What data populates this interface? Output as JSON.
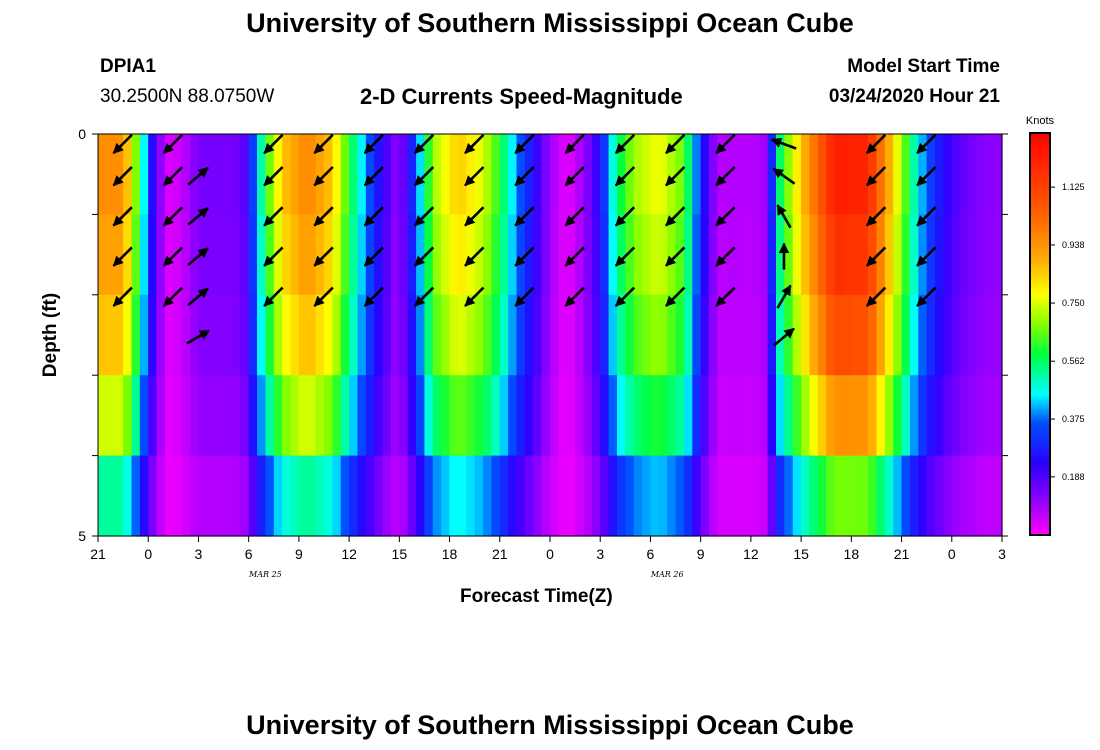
{
  "page": {
    "title_top": "University of Southern Mississippi Ocean Cube",
    "title_bottom": "University of Southern Mississippi Ocean Cube",
    "station_id": "DPIA1",
    "station_coords": "30.2500N 88.0750W",
    "plot_title": "2-D Currents Speed-Magnitude",
    "model_label": "Model Start Time",
    "model_time": "03/24/2020 Hour 21"
  },
  "chart_data": {
    "type": "heatmap",
    "title": "2-D Currents Speed-Magnitude",
    "xlabel": "Forecast Time(Z)",
    "ylabel": "Depth (ft)",
    "x_ticks": [
      "21",
      "0",
      "3",
      "6",
      "9",
      "12",
      "15",
      "18",
      "21",
      "0",
      "3",
      "6",
      "9",
      "12",
      "15",
      "18",
      "21",
      "0",
      "3"
    ],
    "date_labels": [
      {
        "text": "MAR 25",
        "hour_index": 10
      },
      {
        "text": "MAR 26",
        "hour_index": 34
      }
    ],
    "y_ticks": [
      "0",
      "5"
    ],
    "ylim": [
      0,
      5
    ],
    "hours": 54,
    "layers": 5,
    "colorbar": {
      "unit": "Knots",
      "min": 0,
      "max": 1.3,
      "labels": [
        "1.125",
        "0.938",
        "0.750",
        "0.562",
        "0.375",
        "0.188"
      ]
    },
    "speed_profile": [
      {
        "h": 0,
        "v": 0.95
      },
      {
        "h": 1.5,
        "v": 0.95
      },
      {
        "h": 2.2,
        "v": 0.7
      },
      {
        "h": 3,
        "v": 0.35
      },
      {
        "h": 3.5,
        "v": 0.15
      },
      {
        "h": 4.3,
        "v": 0.03
      },
      {
        "h": 5,
        "v": 0.06
      },
      {
        "h": 6,
        "v": 0.14
      },
      {
        "h": 8,
        "v": 0.14
      },
      {
        "h": 8.7,
        "v": 0.16
      },
      {
        "h": 9.3,
        "v": 0.35
      },
      {
        "h": 10,
        "v": 0.6
      },
      {
        "h": 11,
        "v": 0.85
      },
      {
        "h": 12.5,
        "v": 0.97
      },
      {
        "h": 14,
        "v": 0.85
      },
      {
        "h": 15,
        "v": 0.6
      },
      {
        "h": 16,
        "v": 0.4
      },
      {
        "h": 17,
        "v": 0.22
      },
      {
        "h": 18,
        "v": 0.1
      },
      {
        "h": 19,
        "v": 0.35
      },
      {
        "h": 20,
        "v": 0.7
      },
      {
        "h": 21.5,
        "v": 0.85
      },
      {
        "h": 23,
        "v": 0.75
      },
      {
        "h": 24,
        "v": 0.6
      },
      {
        "h": 25,
        "v": 0.4
      },
      {
        "h": 26,
        "v": 0.25
      },
      {
        "h": 27,
        "v": 0.1
      },
      {
        "h": 28,
        "v": 0.02
      },
      {
        "h": 29,
        "v": 0.1
      },
      {
        "h": 30,
        "v": 0.25
      },
      {
        "h": 31,
        "v": 0.55
      },
      {
        "h": 32,
        "v": 0.7
      },
      {
        "h": 33.5,
        "v": 0.78
      },
      {
        "h": 35,
        "v": 0.65
      },
      {
        "h": 36,
        "v": 0.3
      },
      {
        "h": 37,
        "v": 0.07
      },
      {
        "h": 38,
        "v": 0.08
      },
      {
        "h": 39,
        "v": 0.07
      },
      {
        "h": 40,
        "v": 0.1
      },
      {
        "h": 40.5,
        "v": 0.5
      },
      {
        "h": 41.5,
        "v": 0.75
      },
      {
        "h": 42.5,
        "v": 0.95
      },
      {
        "h": 44,
        "v": 1.22
      },
      {
        "h": 46,
        "v": 1.2
      },
      {
        "h": 47,
        "v": 0.95
      },
      {
        "h": 48,
        "v": 0.7
      },
      {
        "h": 49,
        "v": 0.45
      },
      {
        "h": 50,
        "v": 0.3
      },
      {
        "h": 51,
        "v": 0.2
      },
      {
        "h": 52,
        "v": 0.15
      },
      {
        "h": 53,
        "v": 0.12
      },
      {
        "h": 54,
        "v": 0.12
      }
    ],
    "layer_factors": [
      1.0,
      1.0,
      0.96,
      0.9,
      0.78,
      0.55
    ],
    "arrow_hours": [
      1,
      4,
      10,
      13,
      16,
      19,
      22,
      25,
      28,
      31,
      34,
      37,
      40,
      43,
      46,
      49
    ],
    "arrow_depth_rows": [
      0.1,
      0.5,
      1.0,
      1.5,
      2.0,
      2.5
    ],
    "arrows": [
      {
        "h": 1,
        "d": [
          135,
          135,
          135,
          135,
          135,
          null
        ]
      },
      {
        "h": 4,
        "d": [
          135,
          135,
          135,
          135,
          135,
          null
        ]
      },
      {
        "h": 5.5,
        "d": [
          null,
          -40,
          -40,
          -40,
          -40,
          -30
        ]
      },
      {
        "h": 10,
        "d": [
          135,
          135,
          135,
          135,
          135,
          null
        ]
      },
      {
        "h": 13,
        "d": [
          135,
          135,
          135,
          135,
          135,
          null
        ]
      },
      {
        "h": 16,
        "d": [
          135,
          135,
          135,
          135,
          135,
          null
        ]
      },
      {
        "h": 19,
        "d": [
          135,
          135,
          135,
          135,
          135,
          null
        ]
      },
      {
        "h": 22,
        "d": [
          135,
          135,
          135,
          135,
          135,
          null
        ]
      },
      {
        "h": 25,
        "d": [
          135,
          135,
          135,
          135,
          135,
          null
        ]
      },
      {
        "h": 28,
        "d": [
          135,
          135,
          135,
          135,
          135,
          null
        ]
      },
      {
        "h": 31,
        "d": [
          135,
          135,
          135,
          135,
          135,
          null
        ]
      },
      {
        "h": 34,
        "d": [
          135,
          135,
          135,
          135,
          135,
          null
        ]
      },
      {
        "h": 37,
        "d": [
          135,
          135,
          135,
          135,
          135,
          null
        ]
      },
      {
        "h": 40.5,
        "d": [
          200,
          215,
          240,
          270,
          -60,
          -40
        ]
      },
      {
        "h": 46,
        "d": [
          135,
          135,
          135,
          135,
          135,
          null
        ]
      },
      {
        "h": 49,
        "d": [
          135,
          135,
          135,
          135,
          135,
          null
        ]
      }
    ]
  }
}
